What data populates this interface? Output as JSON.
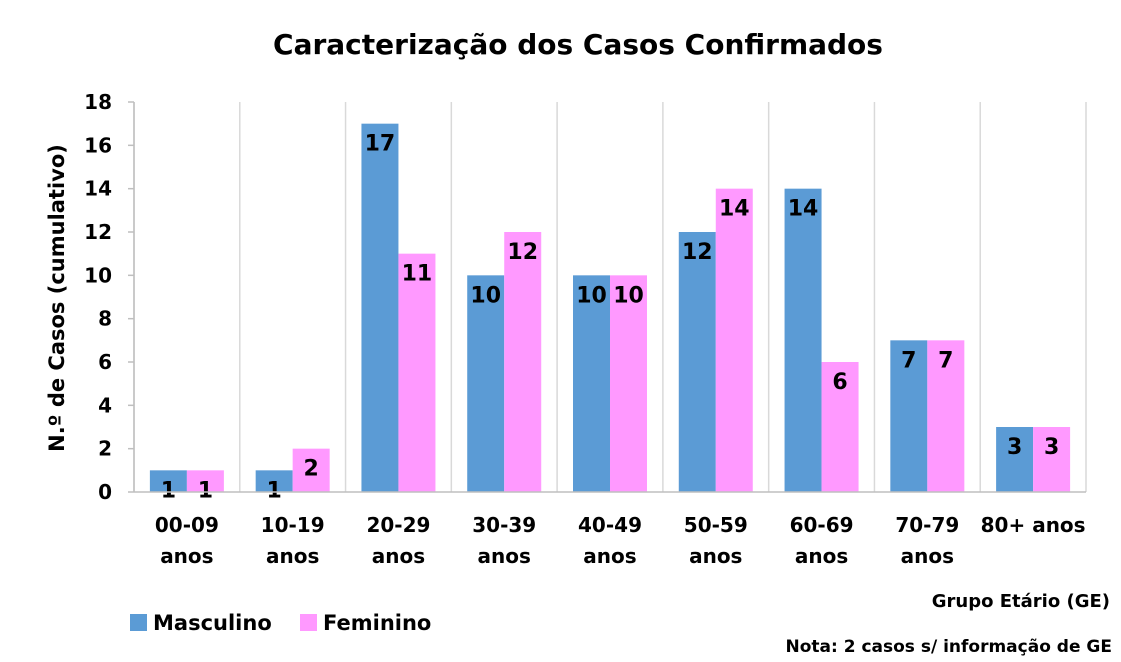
{
  "chart_data": {
    "type": "bar",
    "title": "Caracterização dos Casos Confirmados",
    "ylabel": "N.º de Casos (cumulativo)",
    "xlabel": "Grupo Etário (GE)",
    "note": "Nota: 2 casos s/ informação de GE",
    "categories": [
      [
        "00-09",
        "anos"
      ],
      [
        "10-19",
        "anos"
      ],
      [
        "20-29",
        "anos"
      ],
      [
        "30-39",
        "anos"
      ],
      [
        "40-49",
        "anos"
      ],
      [
        "50-59",
        "anos"
      ],
      [
        "60-69",
        "anos"
      ],
      [
        "70-79",
        "anos"
      ],
      [
        "80+ anos"
      ]
    ],
    "series": [
      {
        "name": "Masculino",
        "color": "#5b9bd5",
        "values": [
          1,
          1,
          17,
          10,
          10,
          12,
          14,
          7,
          3
        ]
      },
      {
        "name": "Feminino",
        "color": "#ff99ff",
        "values": [
          1,
          2,
          11,
          12,
          10,
          14,
          6,
          7,
          3
        ]
      }
    ],
    "ylim": [
      0,
      18
    ],
    "yticks": [
      0,
      2,
      4,
      6,
      8,
      10,
      12,
      14,
      16,
      18
    ],
    "grid": "vertical category separators",
    "legend_position": "bottom-left",
    "data_labels": "inside-end"
  }
}
